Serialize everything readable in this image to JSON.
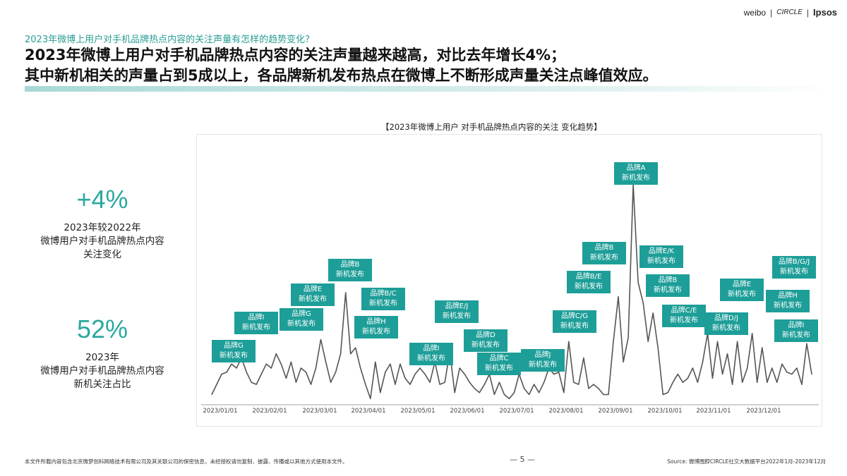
{
  "header": {
    "logos": [
      "weibo",
      "CIRCLE",
      "Ipsos"
    ],
    "question": "2023年微博上用户对手机品牌热点内容的关注声量有怎样的趋势变化?",
    "headline_lines": [
      "2023年微博上用户对手机品牌热点内容的关注声量越来越高，对比去年增长4%；",
      "其中新机相关的声量占到5成以上，各品牌新机发布热点在微博上不断形成声量关注点峰值效应。"
    ]
  },
  "kpis": [
    {
      "value": "+4%",
      "desc": [
        "2023年较2022年",
        "微博用户对手机品牌热点内容",
        "关注变化"
      ]
    },
    {
      "value": "52%",
      "desc": [
        "2023年",
        "微博用户对手机品牌热点内容",
        "新机关注占比"
      ]
    }
  ],
  "chart_data": {
    "type": "line",
    "title": "【2023年微博上用户 对手机品牌热点内容的关注 变化趋势】",
    "xlabel": "",
    "ylabel": "",
    "x_range": [
      "2023/01/01",
      "2023/12/31"
    ],
    "x_ticks": [
      "2023/01/01",
      "2023/02/01",
      "2023/03/01",
      "2023/04/01",
      "2023/05/01",
      "2023/06/01",
      "2023/07/01",
      "2023/08/01",
      "2023/09/01",
      "2023/10/01",
      "2023/11/01",
      "2023/12/01"
    ],
    "y_axis_shown": false,
    "ylim": [
      0,
      110
    ],
    "grid": false,
    "line_color": "#555555",
    "values": [
      5,
      10,
      15,
      16,
      20,
      18,
      23,
      16,
      11,
      10,
      15,
      20,
      18,
      25,
      20,
      13,
      21,
      11,
      18,
      16,
      10,
      18,
      32,
      21,
      11,
      16,
      25,
      55,
      25,
      28,
      18,
      10,
      3,
      21,
      6,
      16,
      20,
      10,
      20,
      13,
      10,
      15,
      18,
      15,
      11,
      21,
      10,
      11,
      26,
      6,
      18,
      15,
      11,
      8,
      6,
      10,
      15,
      5,
      11,
      5,
      3,
      6,
      15,
      8,
      5,
      10,
      6,
      11,
      18,
      15,
      16,
      6,
      31,
      11,
      10,
      23,
      8,
      10,
      8,
      5,
      5,
      31,
      53,
      21,
      33,
      108,
      60,
      50,
      31,
      45,
      28,
      5,
      6,
      11,
      15,
      11,
      13,
      18,
      11,
      21,
      35,
      13,
      31,
      15,
      25,
      10,
      31,
      11,
      18,
      35,
      11,
      28,
      11,
      18,
      11,
      20,
      16,
      15,
      18,
      10,
      30,
      15
    ],
    "annotation_color": "#1e9e98",
    "annotations": [
      {
        "brand": "品牌G",
        "event": "新机发布"
      },
      {
        "brand": "品牌I",
        "event": "新机发布"
      },
      {
        "brand": "品牌G",
        "event": "新机发布"
      },
      {
        "brand": "品牌E",
        "event": "新机发布"
      },
      {
        "brand": "品牌B",
        "event": "新机发布"
      },
      {
        "brand": "品牌B/C",
        "event": "新机发布"
      },
      {
        "brand": "品牌H",
        "event": "新机发布"
      },
      {
        "brand": "品牌E/J",
        "event": "新机发布"
      },
      {
        "brand": "品牌I",
        "event": "新机发布"
      },
      {
        "brand": "品牌D",
        "event": "新机发布"
      },
      {
        "brand": "品牌C",
        "event": "新机发布"
      },
      {
        "brand": "品牌J",
        "event": "新机发布"
      },
      {
        "brand": "品牌C/G",
        "event": "新机发布"
      },
      {
        "brand": "品牌B/E",
        "event": "新机发布"
      },
      {
        "brand": "品牌B",
        "event": "新机发布"
      },
      {
        "brand": "品牌A",
        "event": "新机发布"
      },
      {
        "brand": "品牌E/K",
        "event": "新机发布"
      },
      {
        "brand": "品牌B",
        "event": "新机发布"
      },
      {
        "brand": "品牌C/E",
        "event": "新机发布"
      },
      {
        "brand": "品牌D/J",
        "event": "新机发布"
      },
      {
        "brand": "品牌E",
        "event": "新机发布"
      },
      {
        "brand": "品牌H",
        "event": "新机发布"
      },
      {
        "brand": "品牌B/G/J",
        "event": "新机发布"
      },
      {
        "brand": "品牌I",
        "event": "新机发布"
      }
    ]
  },
  "footer": {
    "disclaimer": "本文件所载内容包含北京微梦创科网络技术有限公司及其关联公司的保密信息，未经授权请勿复制、披露、传播或以其他方式使用本文件。",
    "page": "—  5  —",
    "source": "Source:  微博围脖CIRCLE社交大数据平台2022年1月-2023年12月"
  },
  "colors": {
    "accent": "#2aa8a0",
    "annotation": "#1e9e98"
  }
}
